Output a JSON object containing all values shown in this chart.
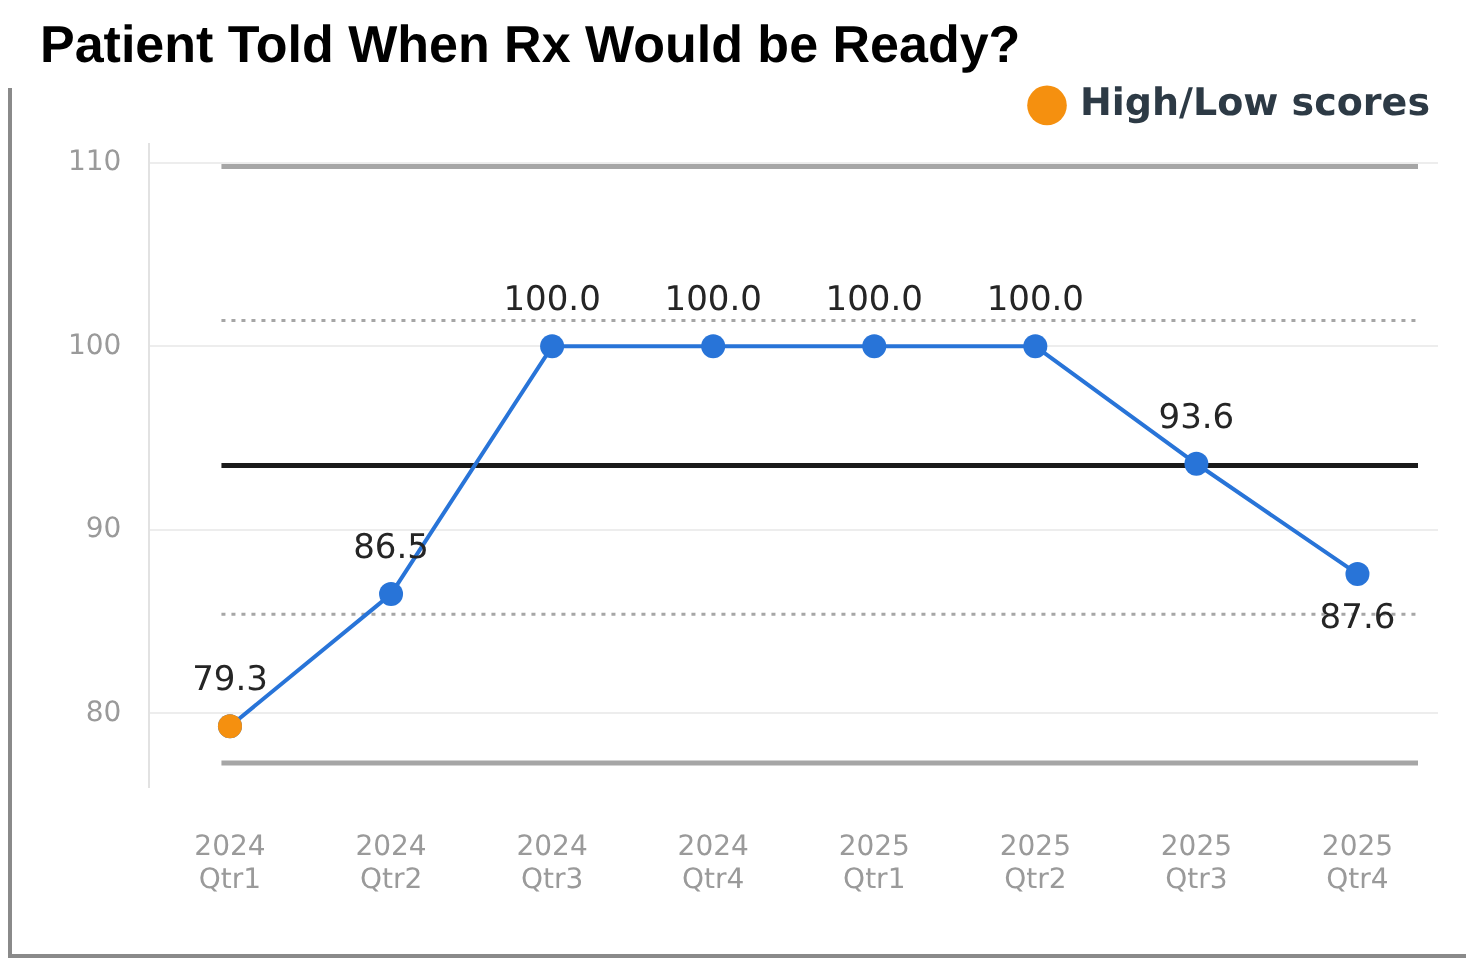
{
  "chart_data": {
    "type": "line",
    "title": "Patient Told When Rx Would be Ready?",
    "categories": [
      "2024 Qtr1",
      "2024 Qtr2",
      "2024 Qtr3",
      "2024 Qtr4",
      "2025 Qtr1",
      "2025 Qtr2",
      "2025 Qtr3",
      "2025 Qtr4"
    ],
    "series": [
      {
        "color": "#2874d8",
        "values": [
          79.3,
          86.5,
          100.0,
          100.0,
          100.0,
          100.0,
          93.6,
          87.6
        ],
        "value_labels": [
          "79.3",
          "86.5",
          "100.0",
          "100.0",
          "100.0",
          "100.0",
          "93.6",
          "87.6"
        ]
      },
      {
        "name": "High/Low scores",
        "color": "#f5900f",
        "values": [
          79.3,
          null,
          null,
          null,
          null,
          null,
          null,
          null
        ]
      }
    ],
    "ylim": [
      76,
      111
    ],
    "yticks": [
      80,
      90,
      100,
      110
    ],
    "grid": "y",
    "legend": "top right",
    "marker": "circle",
    "line_style": "solid",
    "ref_lines": [
      {
        "axis": "y",
        "value": 109.8,
        "color": "#a6a6a6",
        "line_style": "solid"
      },
      {
        "axis": "y",
        "value": 101.4,
        "color": "#a6a6a6",
        "line_style": "dotted"
      },
      {
        "axis": "y",
        "value": 93.5,
        "color": "#1a1a1a",
        "line_style": "solid"
      },
      {
        "axis": "y",
        "value": 85.4,
        "color": "#a6a6a6",
        "line_style": "dotted"
      },
      {
        "axis": "y",
        "value": 77.3,
        "color": "#a6a6a6",
        "line_style": "solid"
      }
    ]
  }
}
